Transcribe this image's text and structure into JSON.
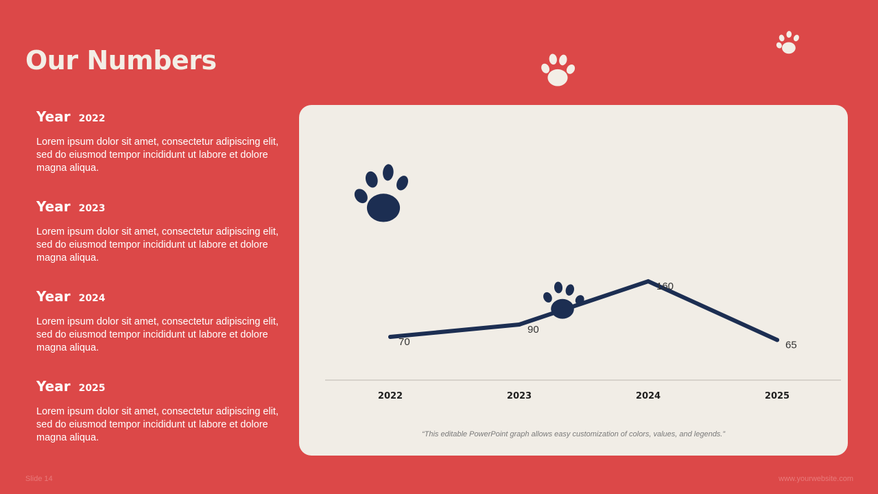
{
  "slide": {
    "title": "Our Numbers",
    "slide_number": "Slide 14",
    "website": "www.yourwebsite.com",
    "caption": "“This editable PowerPoint graph allows easy customization of colors, values, and legends.”"
  },
  "years": [
    {
      "word": "Year",
      "year": "2022",
      "text": "Lorem ipsum dolor sit amet, consectetur adipiscing elit, sed do eiusmod tempor incididunt ut labore et dolore magna aliqua."
    },
    {
      "word": "Year",
      "year": "2023",
      "text": "Lorem ipsum dolor sit amet, consectetur adipiscing elit, sed do eiusmod tempor incididunt ut labore et dolore magna aliqua."
    },
    {
      "word": "Year",
      "year": "2024",
      "text": "Lorem ipsum dolor sit amet, consectetur adipiscing elit, sed do eiusmod tempor incididunt ut labore et dolore magna aliqua."
    },
    {
      "word": "Year",
      "year": "2025",
      "text": "Lorem ipsum dolor sit amet, consectetur adipiscing elit, sed do eiusmod tempor incididunt ut labore et dolore magna aliqua."
    }
  ],
  "colors": {
    "background": "#DC4848",
    "panel": "#F1EDE6",
    "line": "#1C2E52",
    "light_paw": "#F3EEE6"
  },
  "icons": [
    "paw-icon"
  ],
  "chart_data": {
    "type": "line",
    "categories": [
      "2022",
      "2023",
      "2024",
      "2025"
    ],
    "series": [
      {
        "values": [
          70,
          90,
          160,
          65
        ]
      }
    ],
    "title": "",
    "xlabel": "",
    "ylabel": "",
    "ylim": [
      0,
      180
    ],
    "grid": false,
    "data_labels": true
  }
}
